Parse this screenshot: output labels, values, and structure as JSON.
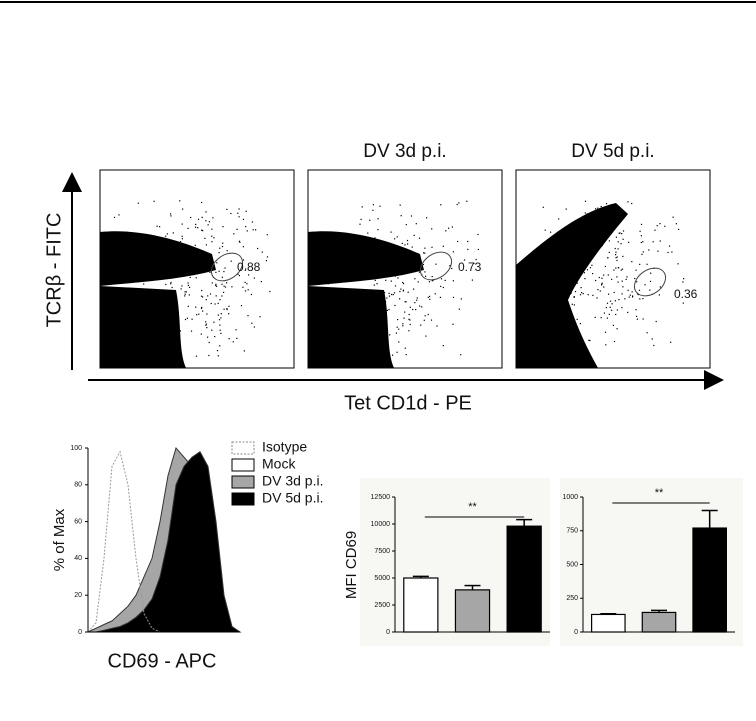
{
  "chart_data": [
    {
      "type": "flow",
      "y_label": "TCRβ - FITC",
      "x_label": "Tet CD1d - PE",
      "panels": [
        {
          "gate": 0.88
        },
        {
          "title": "DV 3d p.i.",
          "gate": 0.73
        },
        {
          "title": "DV 5d p.i.",
          "gate": 0.36
        }
      ]
    },
    {
      "type": "area",
      "y_label": "% of Max",
      "x_label": "CD69 - APC",
      "ylim": [
        0,
        100
      ],
      "yticks": [
        0,
        20,
        40,
        60,
        80,
        100
      ],
      "series": [
        {
          "name": "Mock",
          "color": "#ffffff",
          "values": [
            0,
            2,
            4,
            6,
            8,
            10,
            14,
            20,
            28,
            45,
            70,
            95,
            90,
            85,
            60,
            20,
            5,
            0,
            0,
            0
          ]
        },
        {
          "name": "DV 3d p.i.",
          "color": "#a6a6a6",
          "values": [
            0,
            2,
            4,
            6,
            10,
            14,
            20,
            30,
            40,
            60,
            85,
            100,
            95,
            90,
            80,
            40,
            10,
            2,
            0,
            0
          ]
        },
        {
          "name": "DV 5d p.i.",
          "color": "#000000",
          "values": [
            0,
            0,
            1,
            2,
            3,
            5,
            8,
            12,
            18,
            30,
            50,
            80,
            90,
            95,
            98,
            90,
            60,
            20,
            3,
            0
          ]
        },
        {
          "name": "Isotype",
          "color": "#999999",
          "values": [
            0,
            5,
            40,
            90,
            98,
            80,
            40,
            10,
            2,
            0,
            0,
            0,
            0,
            0,
            0,
            0,
            0,
            0,
            0,
            0
          ]
        }
      ]
    },
    {
      "type": "bar",
      "y_label": "MFI CD69",
      "ylim": [
        0,
        12500
      ],
      "yticks": [
        0,
        2500,
        5000,
        7500,
        10000,
        12500
      ],
      "values": [
        5000,
        3900,
        9800
      ],
      "errors": [
        150,
        400,
        600
      ],
      "colors": [
        "#ffffff",
        "#a6a6a6",
        "#000000"
      ],
      "annotation": "**"
    },
    {
      "type": "bar",
      "ylim": [
        0,
        1000
      ],
      "yticks": [
        0,
        250,
        500,
        750,
        1000
      ],
      "values": [
        130,
        145,
        770
      ],
      "errors": [
        5,
        15,
        130
      ],
      "colors": [
        "#ffffff",
        "#a6a6a6",
        "#000000"
      ],
      "annotation": "**"
    }
  ]
}
